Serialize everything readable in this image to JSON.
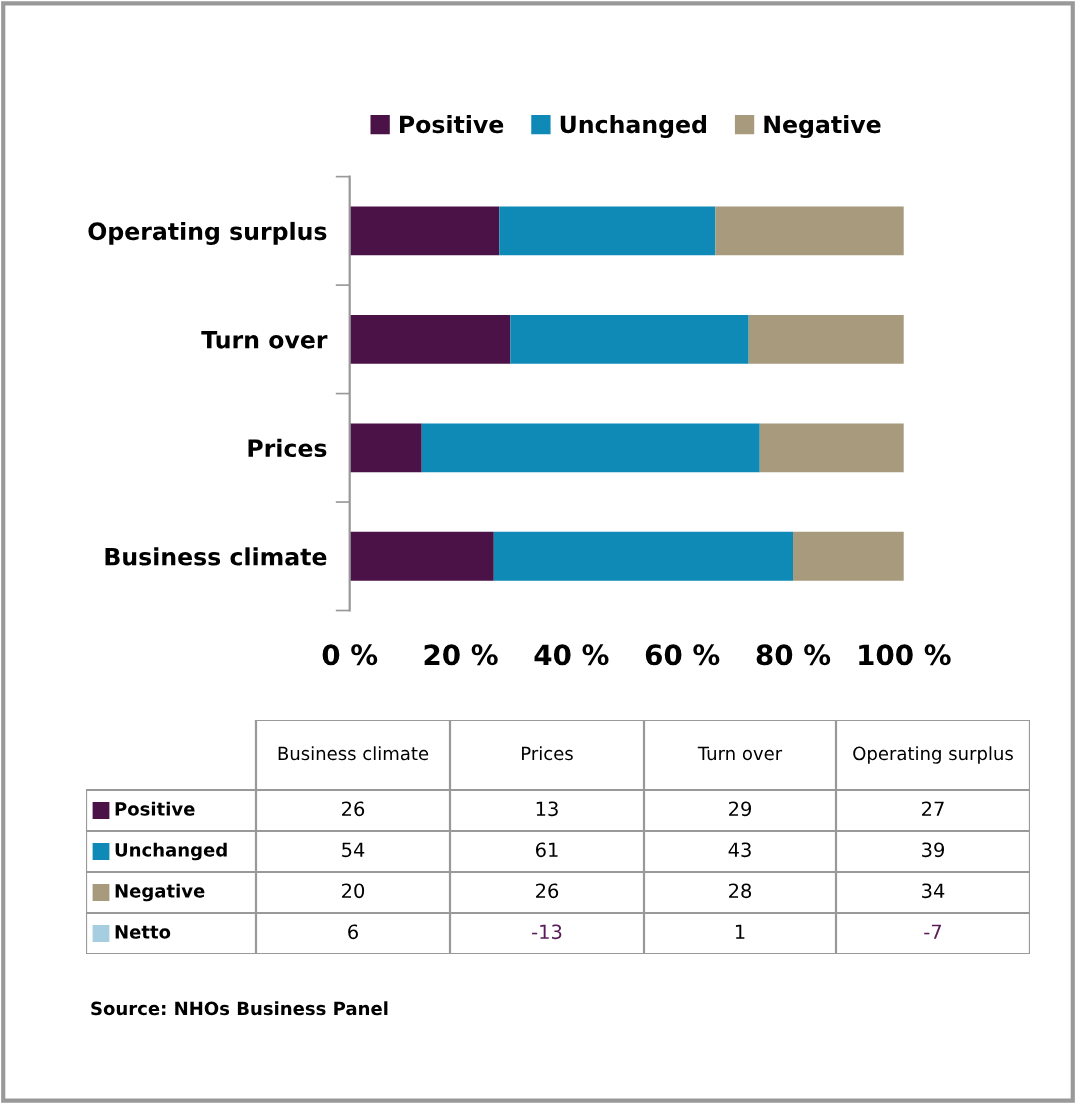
{
  "chart_data": [
    {
      "type": "bar",
      "orientation": "horizontal",
      "stacked": true,
      "categories": [
        "Operating surplus",
        "Turn over",
        "Prices",
        "Business climate"
      ],
      "series": [
        {
          "name": "Positive",
          "color": "#4b1248",
          "values": [
            27,
            29,
            13,
            26
          ]
        },
        {
          "name": "Unchanged",
          "color": "#0f8ab7",
          "values": [
            39,
            43,
            61,
            54
          ]
        },
        {
          "name": "Negative",
          "color": "#a89a7c",
          "values": [
            34,
            28,
            26,
            20
          ]
        }
      ],
      "xlim": [
        0,
        100
      ],
      "xticks": [
        {
          "value": 0,
          "label": "0 %"
        },
        {
          "value": 20,
          "label": "20 %"
        },
        {
          "value": 40,
          "label": "40 %"
        },
        {
          "value": 60,
          "label": "60 %"
        },
        {
          "value": 80,
          "label": "80 %"
        },
        {
          "value": 100,
          "label": "100 %"
        }
      ],
      "grid": false,
      "legend": "top"
    },
    {
      "type": "other",
      "data_labels": true,
      "categories": [
        "Business climate",
        "Prices",
        "Turn over",
        "Operating surplus"
      ],
      "series": [
        {
          "name": "Positive",
          "color": "#4b1248",
          "values": [
            26,
            13,
            29,
            27
          ]
        },
        {
          "name": "Unchanged",
          "color": "#0f8ab7",
          "values": [
            54,
            61,
            43,
            39
          ]
        },
        {
          "name": "Negative",
          "color": "#a89a7c",
          "values": [
            20,
            26,
            28,
            34
          ]
        },
        {
          "name": "Netto",
          "color": "#a6cde0",
          "values": [
            6,
            -13,
            1,
            -7
          ]
        }
      ],
      "annotations": [
        "Source: NHOs Business Panel"
      ]
    }
  ]
}
